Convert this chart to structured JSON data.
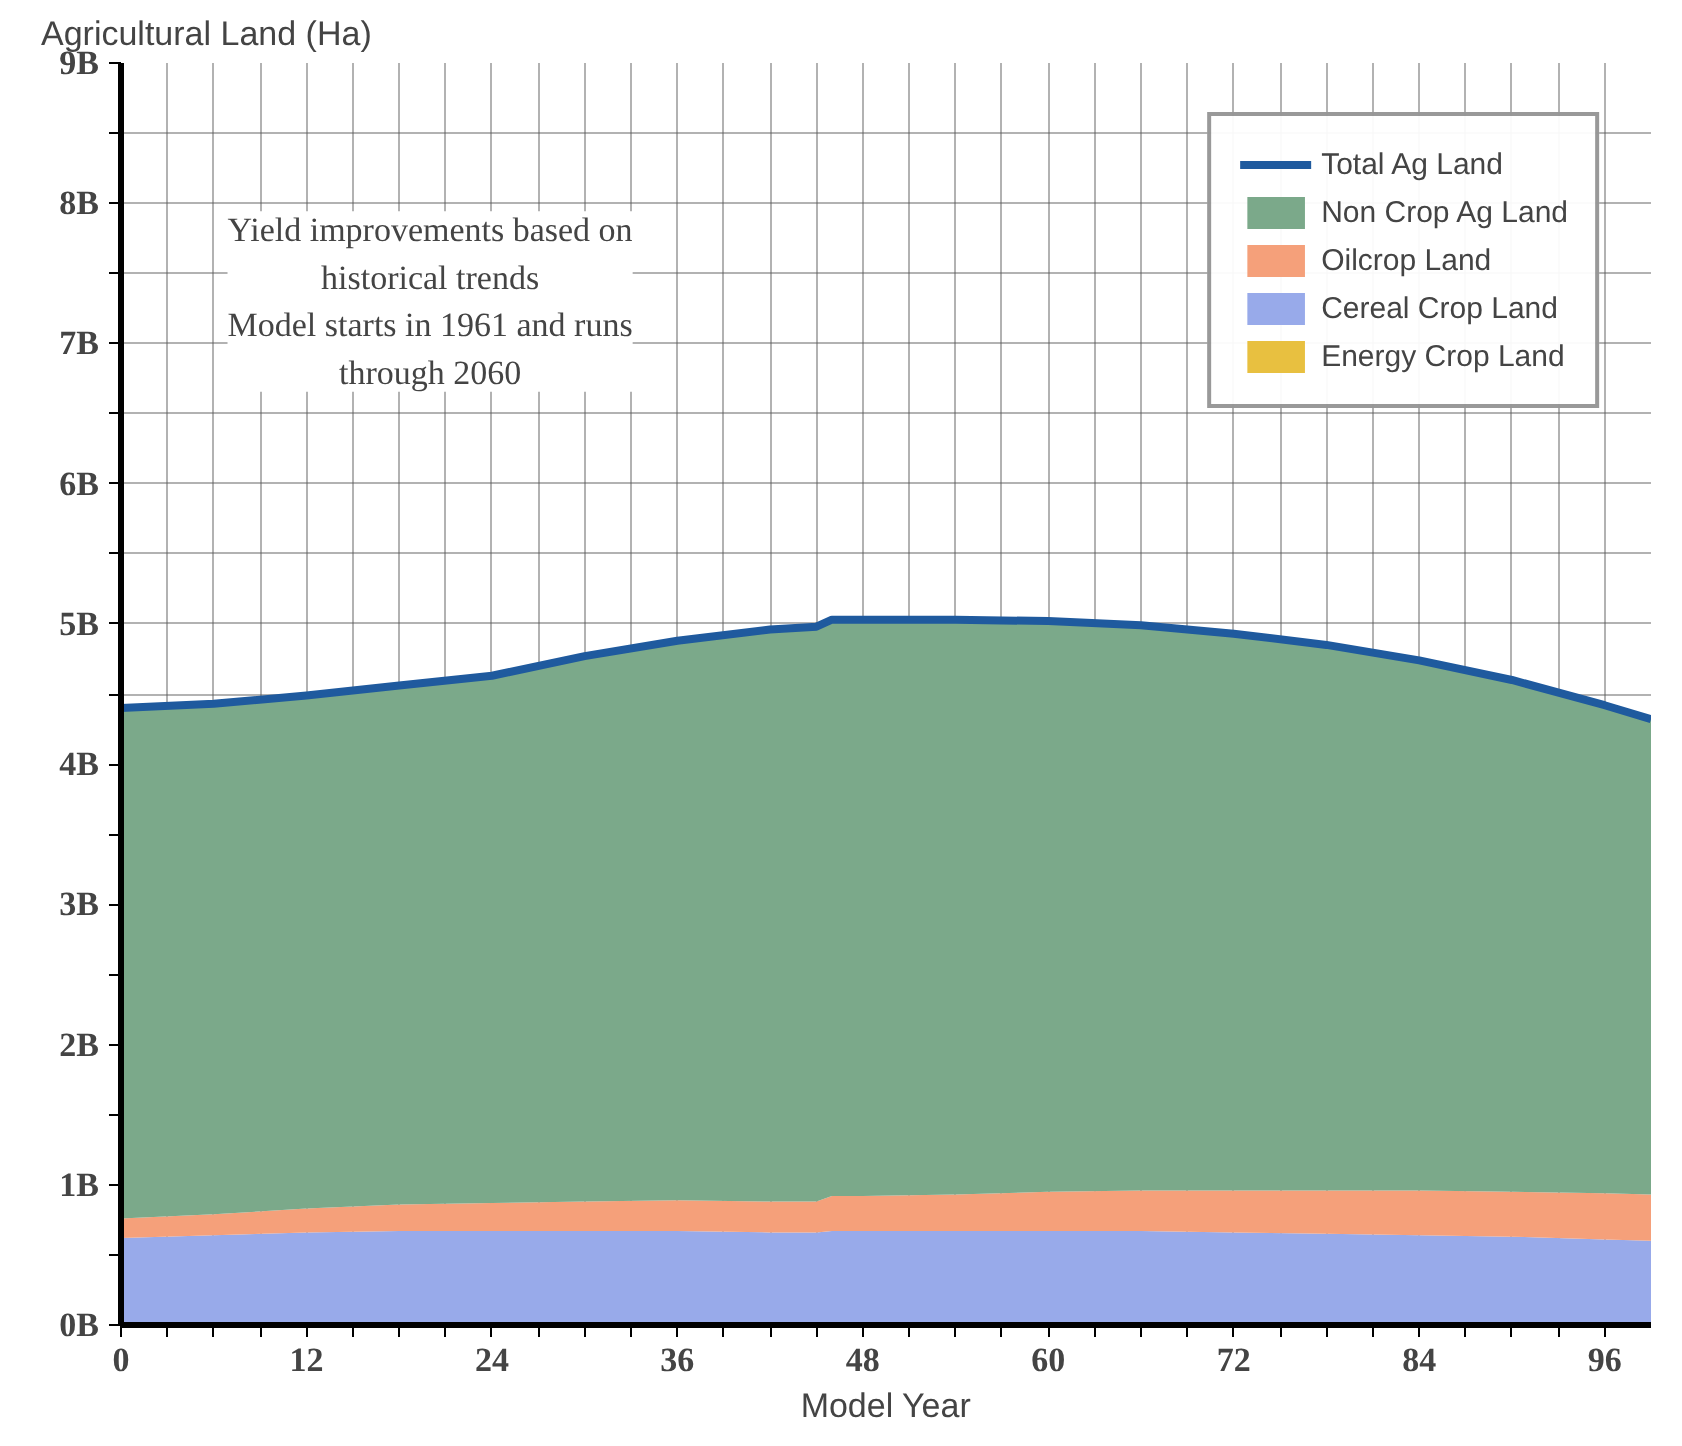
{
  "chart_data": {
    "type": "area",
    "stacked": true,
    "ylabel": "Agricultural Land (Ha)",
    "xlabel": "Model Year",
    "annotations": [
      "Yield improvements based on\nhistorical trends\nModel starts in 1961 and runs\nthrough 2060"
    ],
    "x": [
      0,
      6,
      12,
      18,
      24,
      30,
      36,
      42,
      45,
      46,
      48,
      54,
      60,
      66,
      72,
      78,
      84,
      90,
      96,
      99
    ],
    "series": [
      {
        "name": "Energy Crop Land",
        "color": "#e8c040",
        "values": [
          null,
          null,
          null,
          null,
          null,
          null,
          null,
          null,
          null,
          null,
          null,
          null,
          null,
          null,
          null,
          null,
          null,
          null,
          null,
          null
        ]
      },
      {
        "name": "Cereal Crop Land",
        "color": "#98aaea",
        "values": [
          0.62,
          0.64,
          0.66,
          0.67,
          0.67,
          0.67,
          0.67,
          0.66,
          0.66,
          0.67,
          0.67,
          0.67,
          0.67,
          0.67,
          0.66,
          0.65,
          0.64,
          0.63,
          0.61,
          0.6
        ]
      },
      {
        "name": "Oilcrop Land",
        "color": "#f5a07a",
        "values": [
          0.14,
          0.15,
          0.17,
          0.19,
          0.2,
          0.21,
          0.22,
          0.22,
          0.22,
          0.25,
          0.25,
          0.26,
          0.28,
          0.29,
          0.3,
          0.31,
          0.32,
          0.32,
          0.33,
          0.33
        ]
      },
      {
        "name": "Non Crop Ag Land",
        "color": "#7ba98a",
        "values": [
          3.64,
          3.64,
          3.66,
          3.7,
          3.76,
          3.89,
          3.99,
          4.08,
          4.1,
          4.11,
          4.11,
          4.1,
          4.07,
          4.03,
          3.97,
          3.89,
          3.78,
          3.65,
          3.48,
          3.39
        ]
      },
      {
        "name": "Total Ag Land",
        "type": "line",
        "color": "#1f5a9e",
        "values": [
          4.4,
          4.43,
          4.49,
          4.56,
          4.63,
          4.77,
          4.88,
          4.96,
          4.98,
          5.03,
          5.03,
          5.03,
          5.02,
          4.99,
          4.93,
          4.85,
          4.74,
          4.6,
          4.42,
          4.32
        ]
      }
    ],
    "xlim": [
      0,
      99
    ],
    "xticks": [
      0,
      {
        "value": 3,
        "label": null
      },
      {
        "value": 6,
        "label": null
      },
      {
        "value": 9,
        "label": null
      },
      12,
      {
        "value": 15,
        "label": null
      },
      {
        "value": 18,
        "label": null
      },
      {
        "value": 21,
        "label": null
      },
      24,
      {
        "value": 27,
        "label": null
      },
      {
        "value": 30,
        "label": null
      },
      {
        "value": 33,
        "label": null
      },
      36,
      {
        "value": 39,
        "label": null
      },
      {
        "value": 42,
        "label": null
      },
      {
        "value": 45,
        "label": null
      },
      48,
      {
        "value": 51,
        "label": null
      },
      {
        "value": 54,
        "label": null
      },
      {
        "value": 57,
        "label": null
      },
      60,
      {
        "value": 63,
        "label": null
      },
      {
        "value": 66,
        "label": null
      },
      {
        "value": 69,
        "label": null
      },
      72,
      {
        "value": 75,
        "label": null
      },
      {
        "value": 78,
        "label": null
      },
      {
        "value": 81,
        "label": null
      },
      84,
      {
        "value": 87,
        "label": null
      },
      {
        "value": 90,
        "label": null
      },
      {
        "value": 93,
        "label": null
      },
      96
    ],
    "ylim": [
      0,
      9
    ],
    "yticks": [
      {
        "value": 0,
        "label": "0B"
      },
      {
        "value": 0.5,
        "label": null
      },
      {
        "value": 1,
        "label": "1B"
      },
      {
        "value": 1.5,
        "label": null
      },
      {
        "value": 2,
        "label": "2B"
      },
      {
        "value": 2.5,
        "label": null
      },
      {
        "value": 3,
        "label": "3B"
      },
      {
        "value": 3.5,
        "label": null
      },
      {
        "value": 4,
        "label": "4B"
      },
      {
        "value": 4.5,
        "label": null
      },
      {
        "value": 5,
        "label": "5B"
      },
      {
        "value": 5.5,
        "label": null
      },
      {
        "value": 6,
        "label": "6B"
      },
      {
        "value": 6.5,
        "label": null
      },
      {
        "value": 7,
        "label": "7B"
      },
      {
        "value": 7.5,
        "label": null
      },
      {
        "value": 8,
        "label": "8B"
      },
      {
        "value": 8.5,
        "label": null
      },
      {
        "value": 9,
        "label": "9B"
      }
    ],
    "grid": true,
    "legend": "top right"
  }
}
